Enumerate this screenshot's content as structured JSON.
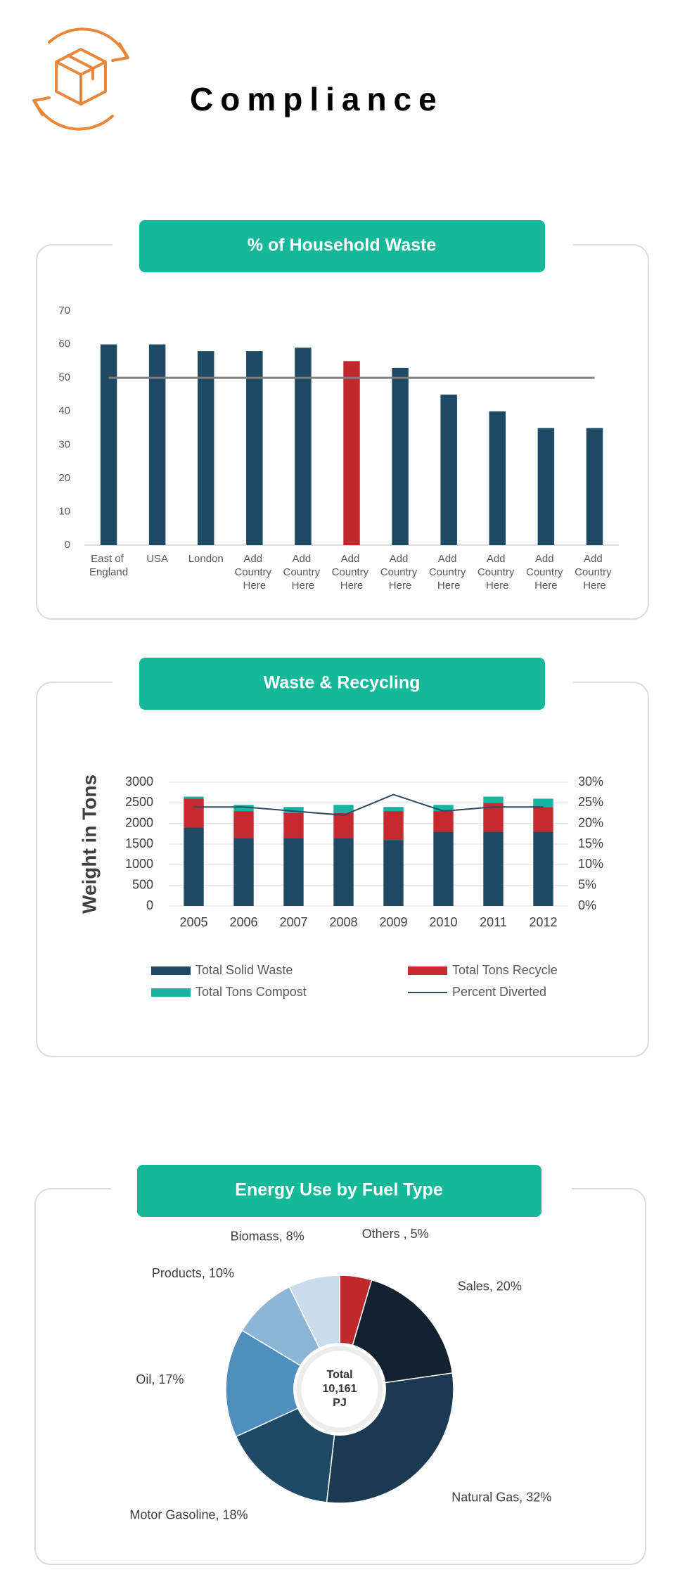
{
  "title": "Compliance",
  "chart_data": [
    {
      "type": "bar",
      "title": "% of Household Waste",
      "categories": [
        "East of England",
        "USA",
        "London",
        "Add Country Here",
        "Add Country Here",
        "Add Country Here",
        "Add Country Here",
        "Add Country Here",
        "Add Country Here",
        "Add Country Here",
        "Add Country Here"
      ],
      "series": [
        {
          "type": "bar",
          "colors": [
            "#1e4a66",
            "#1e4a66",
            "#1e4a66",
            "#1e4a66",
            "#1e4a66",
            "#c0282d",
            "#1e4a66",
            "#1e4a66",
            "#1e4a66",
            "#1e4a66",
            "#1e4a66"
          ],
          "values": [
            60,
            60,
            58,
            58,
            59,
            55,
            53,
            45,
            40,
            35,
            35
          ]
        },
        {
          "type": "line",
          "color": "#7f7f7f",
          "values": [
            50,
            50,
            50,
            50,
            50,
            50,
            50,
            50,
            50,
            50,
            50
          ]
        }
      ],
      "ylim": [
        0,
        70
      ],
      "yticks": [
        0,
        10,
        20,
        30,
        40,
        50,
        60,
        70
      ],
      "grid": false
    },
    {
      "type": "stacked-bar",
      "title": "Waste & Recycling",
      "y_label": "Weight in Tons",
      "categories": [
        "2005",
        "2006",
        "2007",
        "2008",
        "2009",
        "2010",
        "2011",
        "2012"
      ],
      "series": [
        {
          "name": "Total Solid Waste",
          "type": "bar",
          "color": "#1f4863",
          "values": [
            1900,
            1650,
            1650,
            1650,
            1600,
            1800,
            1800,
            1800
          ]
        },
        {
          "name": "Total Tons Recycle",
          "type": "bar",
          "color": "#c62a2f",
          "values": [
            700,
            650,
            600,
            600,
            700,
            500,
            700,
            600
          ]
        },
        {
          "name": "Total Tons Compost",
          "type": "bar",
          "color": "#17b5a0",
          "values": [
            50,
            150,
            150,
            200,
            100,
            150,
            150,
            200
          ]
        },
        {
          "name": "Percent Diverted",
          "type": "line",
          "axis": "y2",
          "color": "#2e4a5e",
          "values": [
            24,
            24,
            23,
            22,
            27,
            23,
            24,
            24
          ]
        }
      ],
      "ylim": [
        0,
        3000
      ],
      "yticks": [
        0,
        500,
        1000,
        1500,
        2000,
        2500,
        3000
      ],
      "y2lim": [
        0,
        30
      ],
      "y2ticks": [
        {
          "value": 0,
          "label": "0%"
        },
        {
          "value": 5,
          "label": "5%"
        },
        {
          "value": 10,
          "label": "10%"
        },
        {
          "value": 15,
          "label": "15%"
        },
        {
          "value": 20,
          "label": "20%"
        },
        {
          "value": 25,
          "label": "25%"
        },
        {
          "value": 30,
          "label": "30%"
        }
      ],
      "grid": true,
      "legend": "bottom"
    },
    {
      "type": "donut",
      "title": "Energy Use by Fuel Type",
      "values": [
        5,
        20,
        32,
        18,
        17,
        10,
        8
      ],
      "value_labels": [
        "Others , 5%",
        "Sales, 20%",
        "Natural Gas, 32%",
        "Motor Gasoline, 18%",
        "Oil, 17%",
        "Products, 10%",
        "Biomass, 8%"
      ],
      "colors": [
        "#c0282d",
        "#13222e",
        "#1b3a52",
        "#1f4a66",
        "#4f8fbf",
        "#8db5d6",
        "#c9dcea"
      ],
      "center_label": [
        "Total",
        "10,161",
        "PJ"
      ]
    }
  ]
}
